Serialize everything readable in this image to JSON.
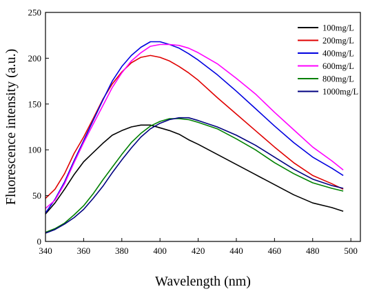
{
  "chart_data": {
    "type": "line",
    "title": "",
    "xlabel": "Wavelength (nm)",
    "ylabel": "Fluorescence  intensity (a.u.)",
    "xlim": [
      340,
      505
    ],
    "ylim": [
      0,
      250
    ],
    "xticks": [
      340,
      360,
      380,
      400,
      420,
      440,
      460,
      480,
      500
    ],
    "yticks": [
      0,
      50,
      100,
      150,
      200,
      250
    ],
    "grid": false,
    "legend_position": "top-right",
    "x": [
      340,
      345,
      350,
      355,
      360,
      365,
      370,
      375,
      380,
      385,
      390,
      395,
      400,
      405,
      410,
      415,
      420,
      430,
      440,
      450,
      460,
      470,
      480,
      490,
      496
    ],
    "series": [
      {
        "name": "100mg/L",
        "color": "#000000",
        "values": [
          30,
          42,
          57,
          73,
          87,
          97,
          107,
          116,
          121,
          125,
          127,
          127,
          124,
          121,
          117,
          111,
          106,
          95,
          84,
          73,
          62,
          51,
          42,
          37,
          33
        ]
      },
      {
        "name": "200mg/L",
        "color": "#e00000",
        "values": [
          47,
          57,
          74,
          96,
          114,
          134,
          155,
          172,
          185,
          195,
          201,
          203,
          201,
          197,
          191,
          184,
          176,
          157,
          139,
          121,
          103,
          86,
          72,
          63,
          57
        ]
      },
      {
        "name": "400mg/L",
        "color": "#0000e0",
        "values": [
          31,
          46,
          65,
          88,
          110,
          132,
          154,
          175,
          191,
          203,
          212,
          218,
          218,
          215,
          211,
          205,
          198,
          182,
          164,
          145,
          126,
          108,
          92,
          80,
          72
        ]
      },
      {
        "name": "600mg/L",
        "color": "#ff00ff",
        "values": [
          36,
          45,
          63,
          86,
          108,
          128,
          148,
          168,
          184,
          197,
          206,
          213,
          215,
          215,
          214,
          211,
          206,
          194,
          178,
          161,
          141,
          122,
          103,
          88,
          78
        ]
      },
      {
        "name": "800mg/L",
        "color": "#008000",
        "values": [
          10,
          14,
          20,
          29,
          39,
          52,
          67,
          81,
          95,
          108,
          118,
          126,
          131,
          134,
          134,
          133,
          130,
          123,
          112,
          100,
          86,
          74,
          64,
          58,
          55
        ]
      },
      {
        "name": "1000mg/L",
        "color": "#000080",
        "values": [
          9,
          13,
          19,
          26,
          35,
          47,
          60,
          75,
          89,
          102,
          114,
          123,
          129,
          133,
          135,
          135,
          132,
          125,
          116,
          105,
          92,
          79,
          68,
          61,
          58
        ]
      }
    ]
  }
}
